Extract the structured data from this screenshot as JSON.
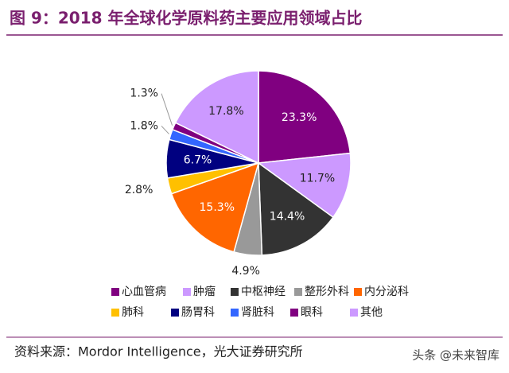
{
  "chart_data": {
    "type": "pie",
    "title": "图 9：2018 年全球化学原料药主要应用领域占比",
    "categories": [
      "心血管病",
      "肿瘤",
      "中枢神经",
      "整形外科",
      "内分泌科",
      "肺科",
      "肠胃科",
      "肾脏科",
      "眼科",
      "其他"
    ],
    "values": [
      23.3,
      11.7,
      14.4,
      4.9,
      15.3,
      2.8,
      6.7,
      1.8,
      1.3,
      17.8
    ],
    "value_labels": [
      "23.3%",
      "11.7%",
      "14.4%",
      "4.9%",
      "15.3%",
      "2.8%",
      "6.7%",
      "1.8%",
      "1.3%",
      "17.8%"
    ],
    "colors": [
      "#800080",
      "#CC99FF",
      "#333333",
      "#999999",
      "#FF6600",
      "#FFC000",
      "#000080",
      "#3366FF",
      "#800080",
      "#CC99FF"
    ],
    "legend": "bottom",
    "source": "资料来源：Mordor Intelligence，光大证券研究所",
    "watermark": "头条 @未来智库"
  }
}
